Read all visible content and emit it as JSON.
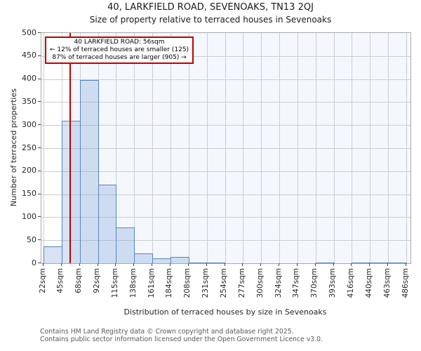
{
  "title": "40, LARKFIELD ROAD, SEVENOAKS, TN13 2QJ",
  "subtitle": "Size of property relative to terraced houses in Sevenoaks",
  "annotation": {
    "line1": "40 LARKFIELD ROAD: 56sqm",
    "line2": "← 12% of terraced houses are smaller (125)",
    "line3": "87% of terraced houses are larger (905) →"
  },
  "footer": {
    "line1": "Contains HM Land Registry data © Crown copyright and database right 2025.",
    "line2": "Contains public sector information licensed under the Open Government Licence v3.0."
  },
  "chart_data": {
    "type": "bar",
    "title": "40, LARKFIELD ROAD, SEVENOAKS, TN13 2QJ",
    "subtitle": "Size of property relative to terraced houses in Sevenoaks",
    "xlabel": "Distribution of terraced houses by size in Sevenoaks",
    "ylabel": "Number of terraced properties",
    "ylim": [
      0,
      500
    ],
    "y_ticks": [
      0,
      50,
      100,
      150,
      200,
      250,
      300,
      350,
      400,
      450,
      500
    ],
    "grid": true,
    "legend_position": "none",
    "bin_edges_sqm": [
      22,
      45,
      68,
      92,
      115,
      138,
      161,
      184,
      208,
      231,
      254,
      277,
      300,
      324,
      347,
      370,
      393,
      416,
      440,
      463,
      486
    ],
    "x_tick_labels": [
      "22sqm",
      "45sqm",
      "68sqm",
      "92sqm",
      "115sqm",
      "138sqm",
      "161sqm",
      "184sqm",
      "208sqm",
      "231sqm",
      "254sqm",
      "277sqm",
      "300sqm",
      "324sqm",
      "347sqm",
      "370sqm",
      "393sqm",
      "416sqm",
      "440sqm",
      "463sqm",
      "486sqm"
    ],
    "values": [
      37,
      310,
      398,
      170,
      78,
      22,
      11,
      14,
      2,
      2,
      0,
      0,
      0,
      0,
      0,
      2,
      0,
      2,
      2,
      2
    ],
    "marker_value_sqm": 56,
    "colors": {
      "bar_fill_rgba": "rgba(88,134,205,0.24)",
      "bar_edge": "#5585c2",
      "marker_line": "#c00000",
      "annotation_border": "#c00000",
      "highlight_band": "#f4f7fd",
      "gridline": "#cdcdcd"
    }
  }
}
